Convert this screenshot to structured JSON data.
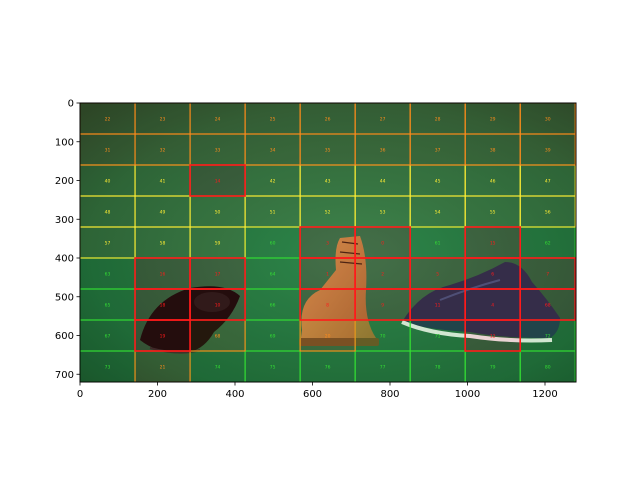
{
  "chart_data": {
    "type": "heatmap",
    "title": "",
    "xlabel": "",
    "ylabel": "",
    "xlim": [
      0,
      1280
    ],
    "ylim": [
      720,
      0
    ],
    "x_ticks": [
      "0",
      "200",
      "400",
      "600",
      "800",
      "1000",
      "1200"
    ],
    "y_ticks": [
      "0",
      "100",
      "200",
      "300",
      "400",
      "500",
      "600",
      "700"
    ],
    "grid": {
      "cols": [
        0,
        142,
        284,
        426,
        568,
        710,
        852,
        994,
        1136,
        1278
      ],
      "rows": [
        0,
        80,
        160,
        240,
        320,
        400,
        480,
        560,
        640,
        720
      ]
    },
    "cell_labels": [
      [
        "22",
        "23",
        "24",
        "25",
        "26",
        "27",
        "28",
        "29",
        "30"
      ],
      [
        "31",
        "32",
        "33",
        "34",
        "35",
        "36",
        "37",
        "38",
        "39"
      ],
      [
        "40",
        "41",
        "14",
        "42",
        "43",
        "44",
        "45",
        "46",
        "47"
      ],
      [
        "48",
        "49",
        "50",
        "51",
        "52",
        "53",
        "54",
        "55",
        "56"
      ],
      [
        "57",
        "58",
        "59",
        "60",
        "3",
        "0",
        "61",
        "15",
        "62"
      ],
      [
        "63",
        "16",
        "17",
        "64",
        "1",
        "2",
        "5",
        "6",
        "7"
      ],
      [
        "65",
        "18",
        "10",
        "66",
        "8",
        "9",
        "11",
        "4",
        "68"
      ],
      [
        "67",
        "19",
        "68",
        "69",
        "20",
        "70",
        "71",
        "12",
        "72"
      ],
      [
        "73",
        "21",
        "74",
        "75",
        "76",
        "77",
        "78",
        "79",
        "80"
      ]
    ],
    "cell_status": [
      [
        "orange",
        "orange",
        "orange",
        "orange",
        "orange",
        "orange",
        "orange",
        "orange",
        "orange"
      ],
      [
        "orange",
        "orange",
        "orange",
        "orange",
        "orange",
        "orange",
        "orange",
        "orange",
        "orange"
      ],
      [
        "yellow",
        "yellow",
        "red",
        "yellow",
        "yellow",
        "yellow",
        "yellow",
        "yellow",
        "yellow"
      ],
      [
        "yellow",
        "yellow",
        "yellow",
        "yellow",
        "yellow",
        "yellow",
        "yellow",
        "yellow",
        "yellow"
      ],
      [
        "yellow",
        "yellow",
        "yellow",
        "green",
        "red",
        "red",
        "green",
        "red",
        "green"
      ],
      [
        "green",
        "red",
        "red",
        "green",
        "red",
        "red",
        "red",
        "red",
        "red"
      ],
      [
        "green",
        "red",
        "red",
        "green",
        "red",
        "red",
        "red",
        "red",
        "red"
      ],
      [
        "green",
        "red",
        "orange",
        "green",
        "orange",
        "green",
        "green",
        "red",
        "green"
      ],
      [
        "green",
        "orange",
        "green",
        "green",
        "green",
        "green",
        "green",
        "green",
        "green"
      ]
    ],
    "colors": {
      "red": "#ff1a1a",
      "orange": "#ff8c1a",
      "yellow": "#ffee33",
      "green": "#33dd33",
      "background": "#1f5e3c"
    }
  }
}
